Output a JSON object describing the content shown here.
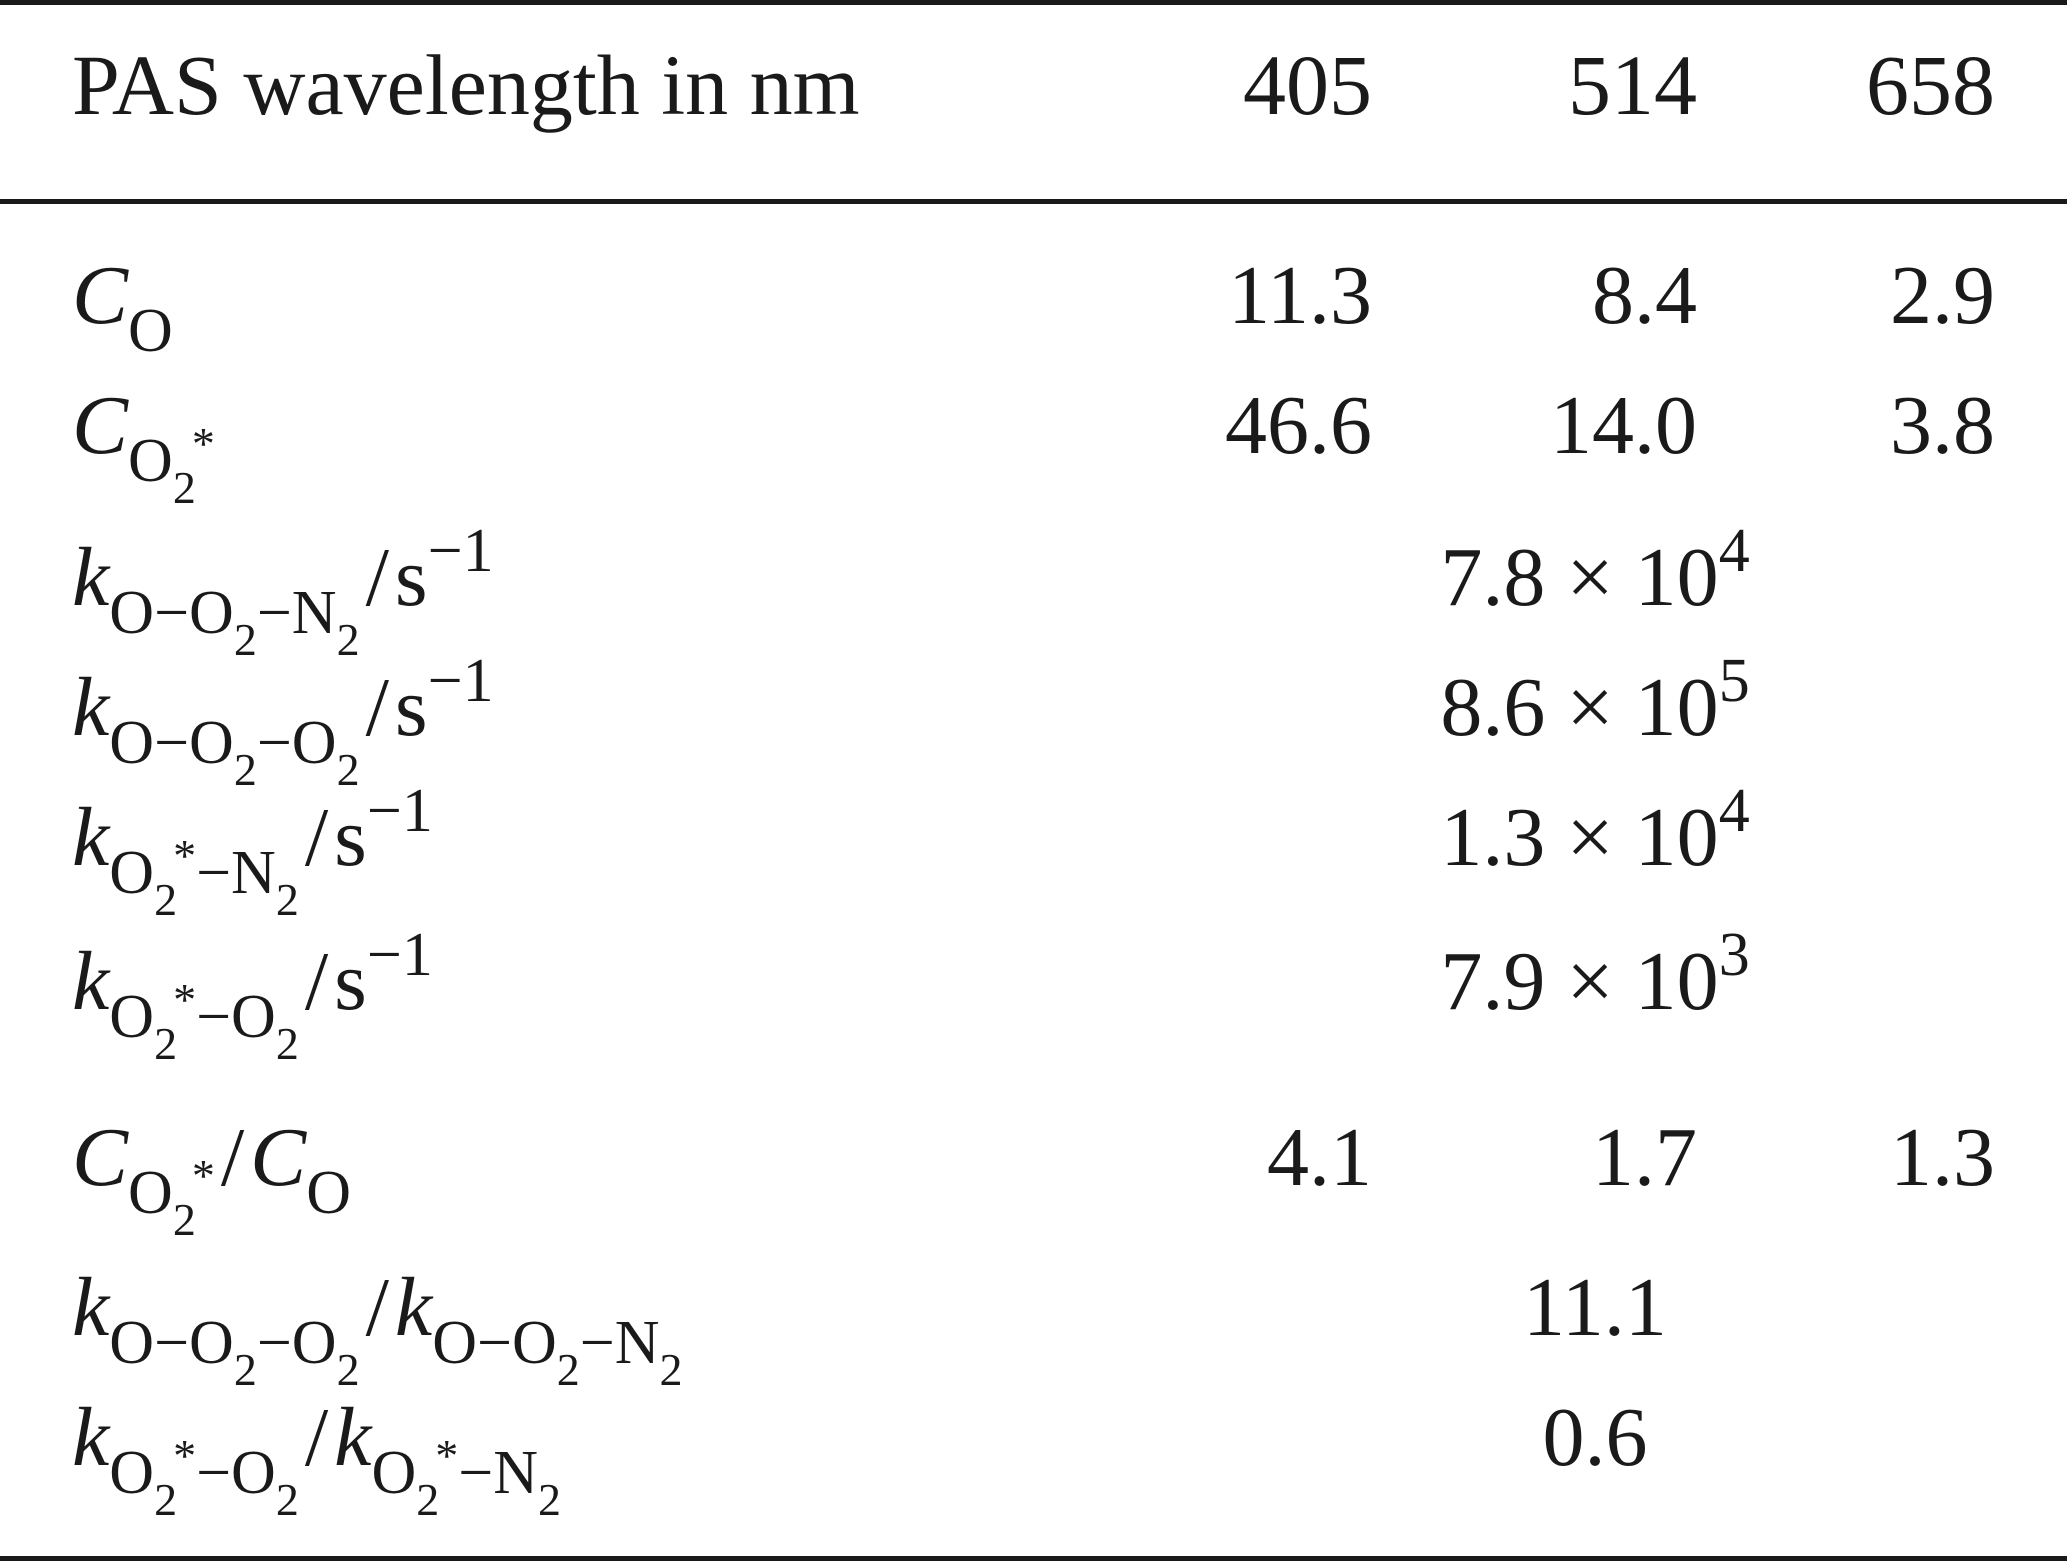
{
  "table": {
    "header": {
      "label": "PAS wavelength in nm",
      "col1": "405",
      "col2": "514",
      "col3": "658"
    },
    "rows": [
      {
        "id": "C_O",
        "values": [
          "11.3",
          "8.4",
          "2.9"
        ]
      },
      {
        "id": "C_O2star",
        "values": [
          "46.6",
          "14.0",
          "3.8"
        ]
      },
      {
        "id": "k_O_O2_N2",
        "value_mantissa": "7.8 × 10",
        "value_exp": "4"
      },
      {
        "id": "k_O_O2_O2",
        "value_mantissa": "8.6 × 10",
        "value_exp": "5"
      },
      {
        "id": "k_O2star_N2",
        "value_mantissa": "1.3 × 10",
        "value_exp": "4"
      },
      {
        "id": "k_O2star_O2",
        "value_mantissa": "7.9 × 10",
        "value_exp": "3"
      },
      {
        "id": "ratio_C",
        "values": [
          "4.1",
          "1.7",
          "1.3"
        ]
      },
      {
        "id": "ratio_k_O",
        "value": "11.1"
      },
      {
        "id": "ratio_k_O2star",
        "value": "0.6"
      }
    ],
    "symbols": {
      "C": "C",
      "k": "k",
      "O": "O",
      "O2": "O",
      "two": "2",
      "N": "N",
      "star": "*",
      "dash": "−",
      "slash": "/",
      "s": "s",
      "inv": "−1"
    }
  }
}
